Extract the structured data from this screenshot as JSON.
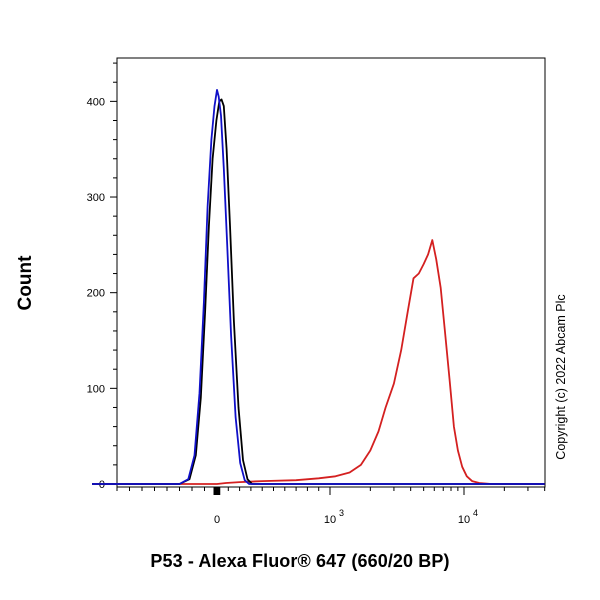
{
  "chart_data": {
    "type": "area",
    "xlabel": "P53 - Alexa Fluor® 647 (660/20 BP)",
    "ylabel": "Count",
    "ylim": [
      0,
      440
    ],
    "x_scale": "biexponential",
    "x_ticks": [
      {
        "value": 0,
        "label": "0"
      },
      {
        "value": 1000,
        "label": "10",
        "exponent": "3"
      },
      {
        "value": 10000,
        "label": "10",
        "exponent": "4"
      }
    ],
    "y_ticks": [
      0,
      100,
      200,
      300,
      400
    ],
    "grid": false,
    "legend": "none",
    "series": [
      {
        "color": "#d42020",
        "points": [
          [
            -1000,
            0
          ],
          [
            -200,
            0
          ],
          [
            -50,
            0
          ],
          [
            0,
            0
          ],
          [
            80,
            1
          ],
          [
            200,
            2
          ],
          [
            400,
            3
          ],
          [
            700,
            4
          ],
          [
            900,
            6
          ],
          [
            1100,
            8
          ],
          [
            1400,
            12
          ],
          [
            1700,
            20
          ],
          [
            2000,
            35
          ],
          [
            2300,
            55
          ],
          [
            2600,
            80
          ],
          [
            3000,
            105
          ],
          [
            3400,
            140
          ],
          [
            3800,
            180
          ],
          [
            4200,
            215
          ],
          [
            4600,
            220
          ],
          [
            5000,
            230
          ],
          [
            5400,
            240
          ],
          [
            5800,
            255
          ],
          [
            6200,
            235
          ],
          [
            6700,
            205
          ],
          [
            7200,
            160
          ],
          [
            7800,
            110
          ],
          [
            8400,
            60
          ],
          [
            9000,
            35
          ],
          [
            9700,
            18
          ],
          [
            10500,
            8
          ],
          [
            11500,
            3
          ],
          [
            13000,
            1
          ],
          [
            16000,
            0
          ],
          [
            40000,
            0
          ]
        ]
      },
      {
        "color": "#000000",
        "points": [
          [
            -1000,
            0
          ],
          [
            -300,
            0
          ],
          [
            -220,
            5
          ],
          [
            -170,
            30
          ],
          [
            -130,
            90
          ],
          [
            -95,
            180
          ],
          [
            -65,
            270
          ],
          [
            -35,
            340
          ],
          [
            -5,
            380
          ],
          [
            20,
            400
          ],
          [
            40,
            402
          ],
          [
            60,
            395
          ],
          [
            85,
            350
          ],
          [
            115,
            270
          ],
          [
            150,
            170
          ],
          [
            190,
            80
          ],
          [
            230,
            25
          ],
          [
            270,
            5
          ],
          [
            310,
            0
          ],
          [
            40000,
            0
          ]
        ]
      },
      {
        "color": "#1010c8",
        "points": [
          [
            -1000,
            0
          ],
          [
            -300,
            0
          ],
          [
            -230,
            5
          ],
          [
            -180,
            30
          ],
          [
            -140,
            95
          ],
          [
            -105,
            190
          ],
          [
            -75,
            290
          ],
          [
            -45,
            360
          ],
          [
            -20,
            395
          ],
          [
            0,
            412
          ],
          [
            15,
            405
          ],
          [
            35,
            385
          ],
          [
            60,
            330
          ],
          [
            90,
            250
          ],
          [
            125,
            155
          ],
          [
            165,
            70
          ],
          [
            205,
            22
          ],
          [
            245,
            4
          ],
          [
            285,
            0
          ],
          [
            40000,
            0
          ]
        ]
      }
    ]
  },
  "copyright": "Copyright (c) 2022 Abcam Plc"
}
